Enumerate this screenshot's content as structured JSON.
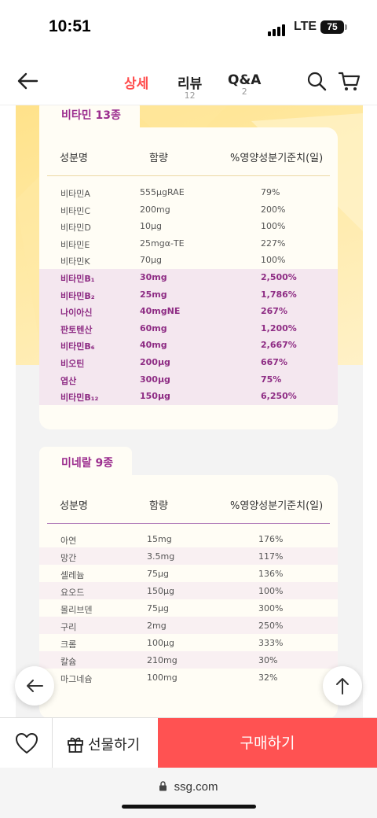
{
  "status_bar": {
    "time": "10:51",
    "network": "LTE",
    "battery": "75"
  },
  "nav": {
    "tabs": [
      {
        "label": "상세",
        "count": ""
      },
      {
        "label": "리뷰",
        "count": "12"
      },
      {
        "label": "Q&A",
        "count": "2"
      }
    ]
  },
  "vitamin": {
    "section_title": "비타민 13종",
    "headers": [
      "성분명",
      "함량",
      "%영양성분기준치(일)"
    ],
    "rows": [
      {
        "name": "비타민A",
        "amount": "555μgRAE",
        "percent": "79%",
        "highlight": false
      },
      {
        "name": "비타민C",
        "amount": "200mg",
        "percent": "200%",
        "highlight": false
      },
      {
        "name": "비타민D",
        "amount": "10μg",
        "percent": "100%",
        "highlight": false
      },
      {
        "name": "비타민E",
        "amount": "25mgα-TE",
        "percent": "227%",
        "highlight": false
      },
      {
        "name": "비타민K",
        "amount": "70μg",
        "percent": "100%",
        "highlight": false
      },
      {
        "name": "비타민B₁",
        "amount": "30mg",
        "percent": "2,500%",
        "highlight": true
      },
      {
        "name": "비타민B₂",
        "amount": "25mg",
        "percent": "1,786%",
        "highlight": true
      },
      {
        "name": "나이아신",
        "amount": "40mgNE",
        "percent": "267%",
        "highlight": true
      },
      {
        "name": "판토텐산",
        "amount": "60mg",
        "percent": "1,200%",
        "highlight": true
      },
      {
        "name": "비타민B₆",
        "amount": "40mg",
        "percent": "2,667%",
        "highlight": true
      },
      {
        "name": "비오틴",
        "amount": "200μg",
        "percent": "667%",
        "highlight": true
      },
      {
        "name": "엽산",
        "amount": "300μg",
        "percent": "75%",
        "highlight": true
      },
      {
        "name": "비타민B₁₂",
        "amount": "150μg",
        "percent": "6,250%",
        "highlight": true
      }
    ]
  },
  "mineral": {
    "section_title": "미네랄 9종",
    "headers": [
      "성분명",
      "함량",
      "%영양성분기준치(일)"
    ],
    "rows": [
      {
        "name": "아연",
        "amount": "15mg",
        "percent": "176%"
      },
      {
        "name": "망간",
        "amount": "3.5mg",
        "percent": "117%"
      },
      {
        "name": "셀레늄",
        "amount": "75μg",
        "percent": "136%"
      },
      {
        "name": "요오드",
        "amount": "150μg",
        "percent": "100%"
      },
      {
        "name": "몰리브덴",
        "amount": "75μg",
        "percent": "300%"
      },
      {
        "name": "구리",
        "amount": "2mg",
        "percent": "250%"
      },
      {
        "name": "크롬",
        "amount": "100μg",
        "percent": "333%"
      },
      {
        "name": "칼슘",
        "amount": "210mg",
        "percent": "30%"
      },
      {
        "name": "마그네슘",
        "amount": "100mg",
        "percent": "32%"
      }
    ]
  },
  "bottom_bar": {
    "gift_label": "선물하기",
    "buy_label": "구매하기"
  },
  "browser": {
    "url": "ssg.com"
  },
  "colors": {
    "accent": "#ff5252",
    "tab_active": "#ff4d4d",
    "section_purple": "#9b2c8e"
  },
  "icons": [
    "back-arrow-icon",
    "search-icon",
    "cart-icon",
    "heart-icon",
    "gift-icon",
    "lock-icon",
    "scroll-up-icon"
  ]
}
